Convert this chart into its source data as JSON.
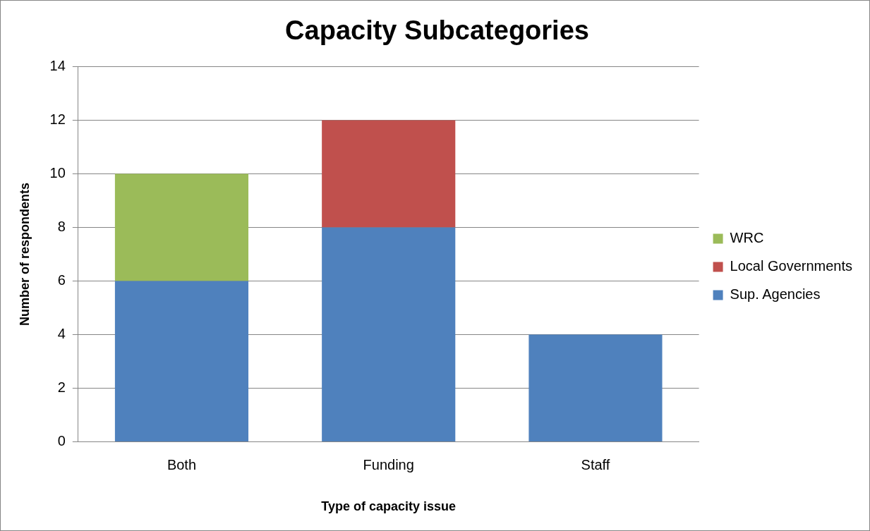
{
  "chart_data": {
    "type": "bar",
    "title": "Capacity Subcategories",
    "xlabel": "Type of capacity issue",
    "ylabel": "Number of respondents",
    "categories": [
      "Both",
      "Funding",
      "Staff"
    ],
    "series": [
      {
        "name": "Sup. Agencies",
        "color": "#4f81bd",
        "values": [
          6,
          8,
          4
        ]
      },
      {
        "name": "Local Governments",
        "color": "#c0504d",
        "values": [
          0,
          4,
          0
        ]
      },
      {
        "name": "WRC",
        "color": "#9bbb59",
        "values": [
          4,
          0,
          0
        ]
      }
    ],
    "stacked": true,
    "ylim": [
      0,
      14
    ],
    "yticks": [
      0,
      2,
      4,
      6,
      8,
      10,
      12,
      14
    ],
    "grid": "y",
    "legend": "right"
  }
}
